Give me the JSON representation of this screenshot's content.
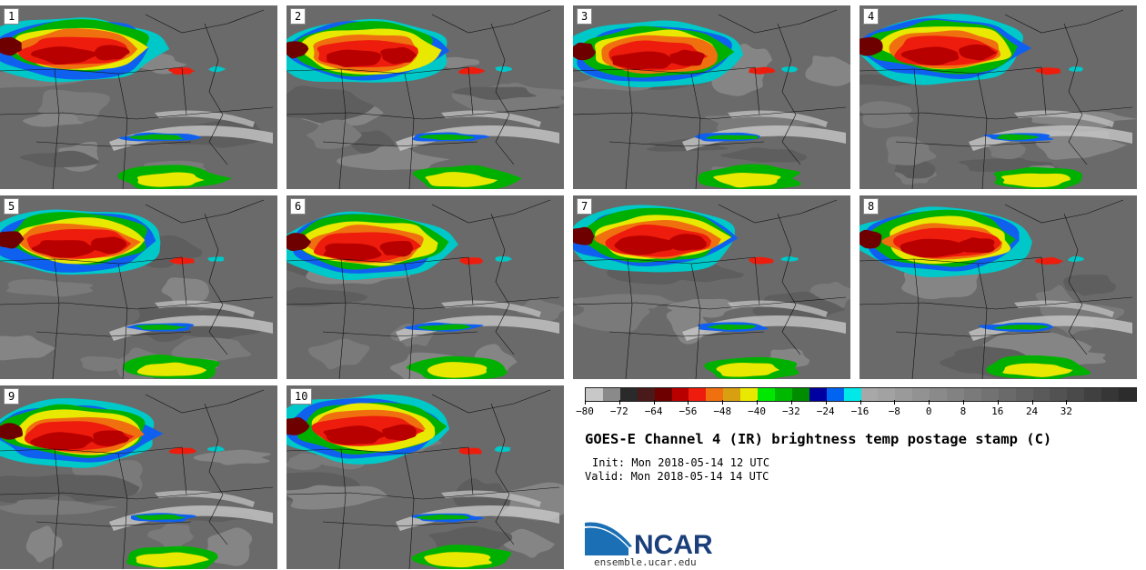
{
  "panels": [
    {
      "num": "1"
    },
    {
      "num": "2"
    },
    {
      "num": "3"
    },
    {
      "num": "4"
    },
    {
      "num": "5"
    },
    {
      "num": "6"
    },
    {
      "num": "7"
    },
    {
      "num": "8"
    },
    {
      "num": "9"
    },
    {
      "num": "10"
    }
  ],
  "colorbar": {
    "colors": [
      "#c8c8c8",
      "#8a8a8a",
      "#2a2a2a",
      "#4a1a1a",
      "#6e0000",
      "#b80000",
      "#ee1c0c",
      "#f07010",
      "#d8a010",
      "#e8e800",
      "#00e800",
      "#00b800",
      "#008c00",
      "#0000a0",
      "#0064f0",
      "#00e8e8",
      "#a8a8a8",
      "#a2a2a2",
      "#9a9a9a",
      "#929292",
      "#8a8a8a",
      "#828282",
      "#7a7a7a",
      "#727272",
      "#6a6a6a",
      "#626262",
      "#5a5a5a",
      "#525252",
      "#4a4a4a",
      "#404040",
      "#363636",
      "#2c2c2c"
    ],
    "ticks": [
      "−80",
      "−72",
      "−64",
      "−56",
      "−48",
      "−40",
      "−32",
      "−24",
      "−16",
      "−8",
      "0",
      "8",
      "16",
      "24",
      "32"
    ]
  },
  "title": "GOES-E Channel 4 (IR) brightness temp postage stamp (C)",
  "init": "Init: Mon 2018-05-14 12 UTC",
  "valid": "Valid: Mon 2018-05-14 14 UTC",
  "logo_text": "NCAR",
  "site": "ensemble.ucar.edu"
}
